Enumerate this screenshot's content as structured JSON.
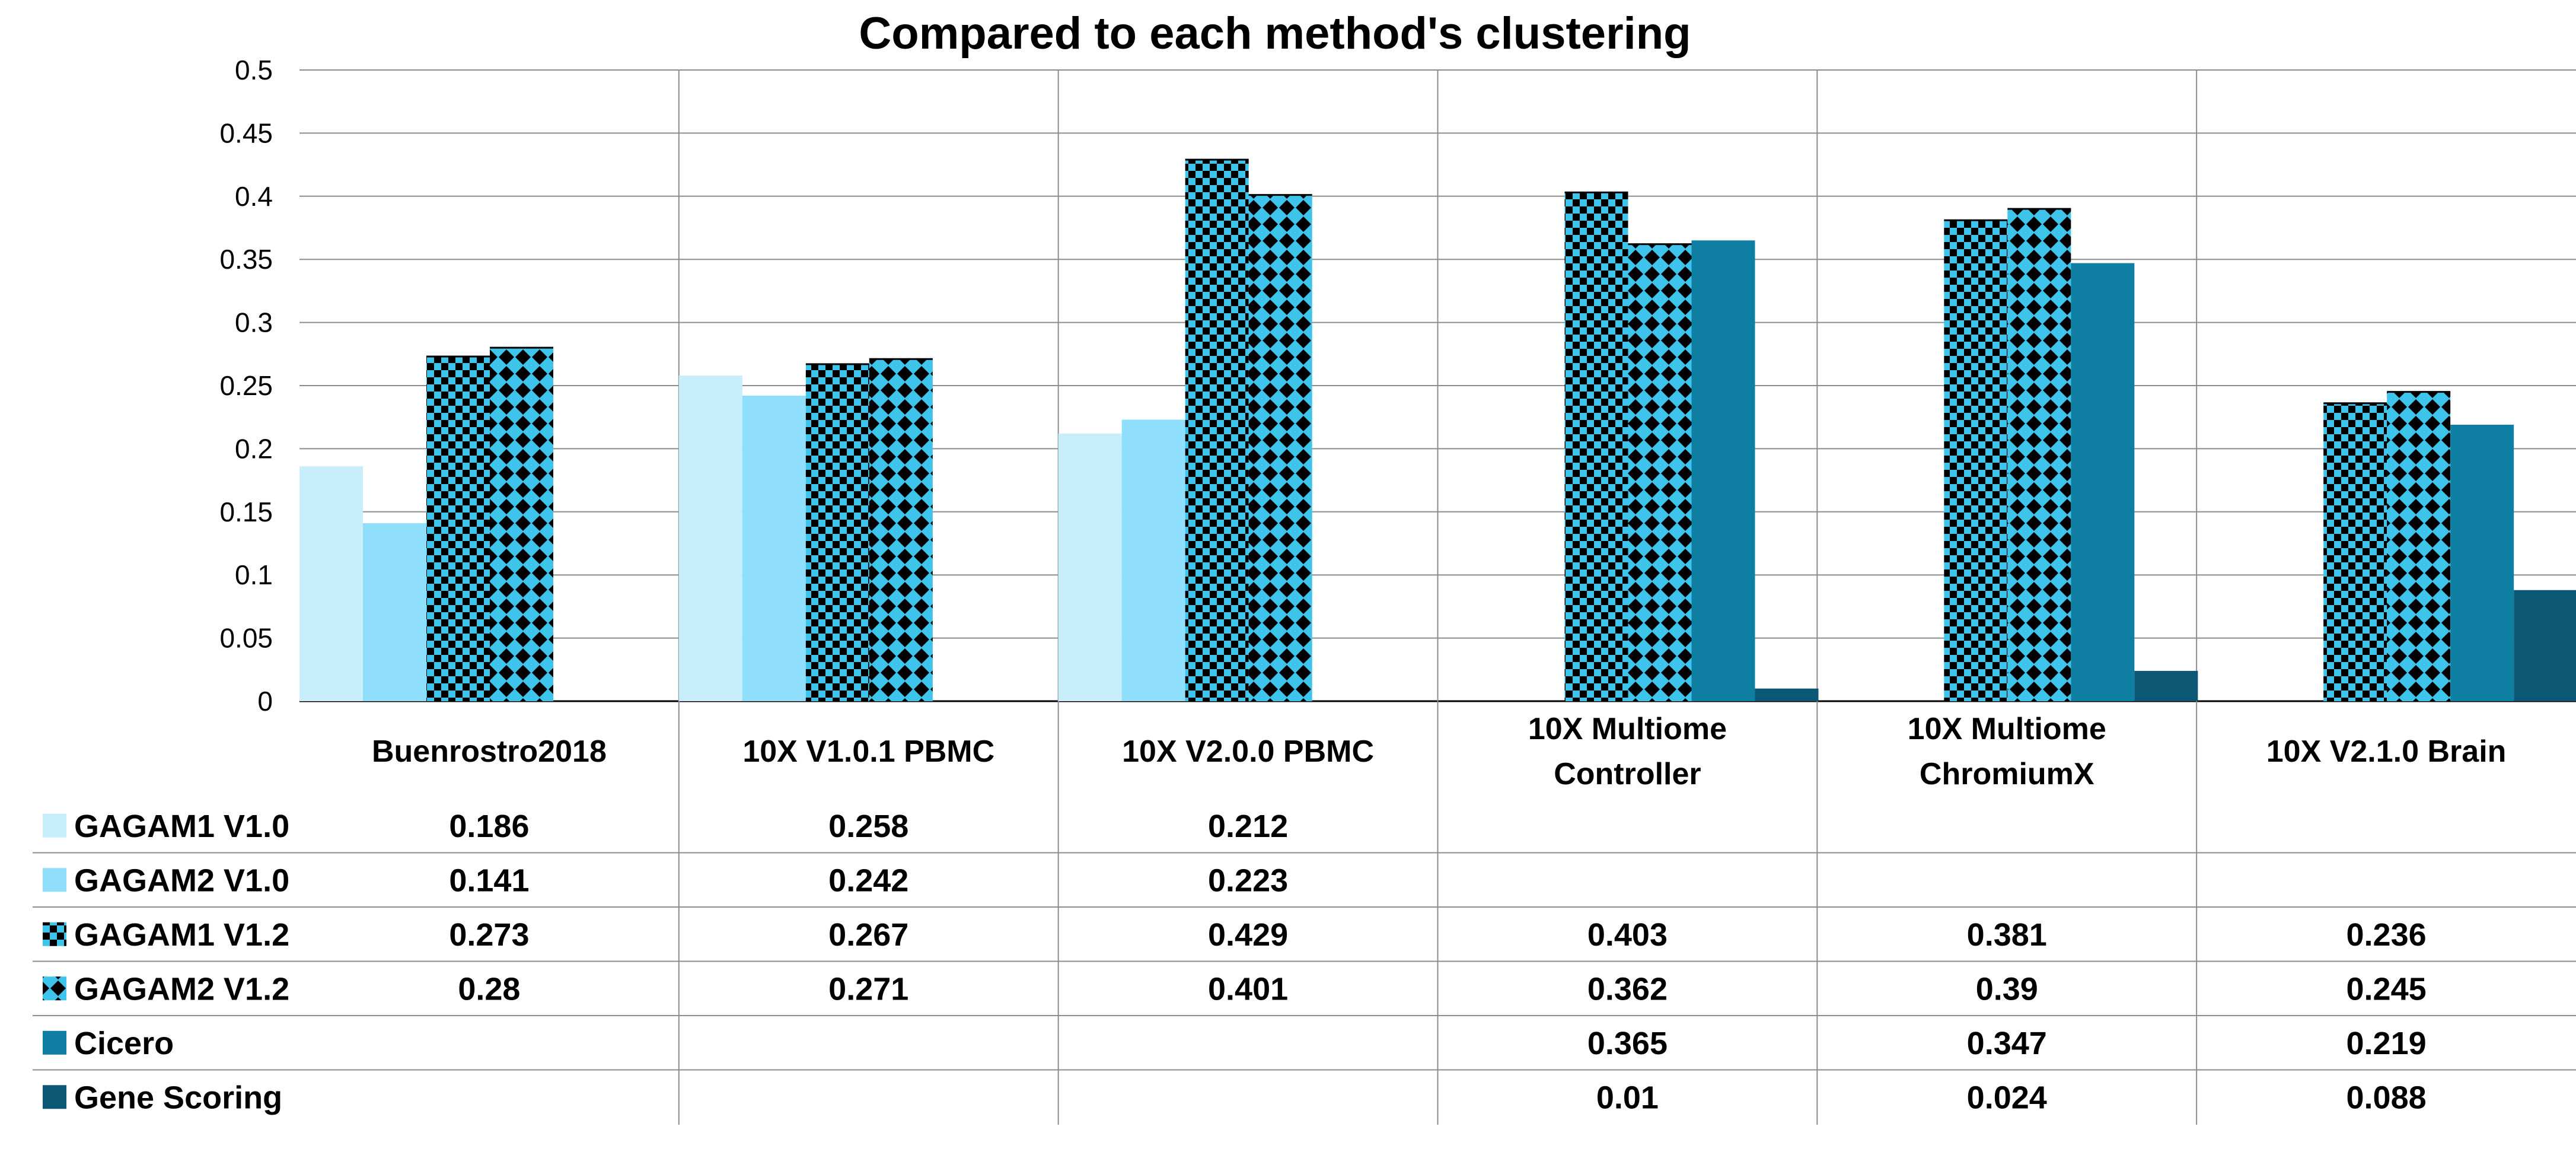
{
  "chart_data": {
    "type": "bar",
    "title": "Compared to each method's clustering",
    "categories": [
      "Buenrostro2018",
      "10X V1.0.1 PBMC",
      "10X V2.0.0 PBMC",
      "10X Multiome Controller",
      "10X Multiome ChromiumX",
      "10X V2.1.0 Brain"
    ],
    "category_lines": [
      [
        "Buenrostro2018"
      ],
      [
        "10X V1.0.1 PBMC"
      ],
      [
        "10X V2.0.0 PBMC"
      ],
      [
        "10X Multiome",
        "Controller"
      ],
      [
        "10X Multiome",
        "ChromiumX"
      ],
      [
        "10X V2.1.0 Brain"
      ]
    ],
    "ylim": [
      0,
      0.5
    ],
    "yticks": [
      "0",
      "0.05",
      "0.1",
      "0.15",
      "0.2",
      "0.25",
      "0.3",
      "0.35",
      "0.4",
      "0.45",
      "0.5"
    ],
    "grid": true,
    "legend_placement": "left (data table)",
    "series": [
      {
        "name": "GAGAM1 V1.0",
        "values": [
          0.186,
          0.258,
          0.212,
          null,
          null,
          null
        ],
        "color": "#c8eefb",
        "pattern": "solid"
      },
      {
        "name": "GAGAM2 V1.0",
        "values": [
          0.141,
          0.242,
          0.223,
          null,
          null,
          null
        ],
        "color": "#8fdefc",
        "pattern": "solid"
      },
      {
        "name": "GAGAM1 V1.2",
        "values": [
          0.273,
          0.267,
          0.429,
          0.403,
          0.381,
          0.236
        ],
        "color": "#3ec3ea",
        "pattern": "checker"
      },
      {
        "name": "GAGAM2 V1.2",
        "values": [
          0.28,
          0.271,
          0.401,
          0.362,
          0.39,
          0.245
        ],
        "color": "#3ec3ea",
        "pattern": "diamond"
      },
      {
        "name": "Cicero",
        "values": [
          null,
          null,
          null,
          0.365,
          0.347,
          0.219
        ],
        "color": "#0e7ea3",
        "pattern": "solid"
      },
      {
        "name": "Gene Scoring",
        "values": [
          null,
          null,
          null,
          0.01,
          0.024,
          0.088
        ],
        "color": "#0b5774",
        "pattern": "solid"
      }
    ],
    "table_values": [
      [
        "0.186",
        "0.258",
        "0.212",
        "",
        "",
        ""
      ],
      [
        "0.141",
        "0.242",
        "0.223",
        "",
        "",
        ""
      ],
      [
        "0.273",
        "0.267",
        "0.429",
        "0.403",
        "0.381",
        "0.236"
      ],
      [
        "0.28",
        "0.271",
        "0.401",
        "0.362",
        "0.39",
        "0.245"
      ],
      [
        "",
        "",
        "",
        "0.365",
        "0.347",
        "0.219"
      ],
      [
        "",
        "",
        "",
        "0.01",
        "0.024",
        "0.088"
      ]
    ]
  }
}
